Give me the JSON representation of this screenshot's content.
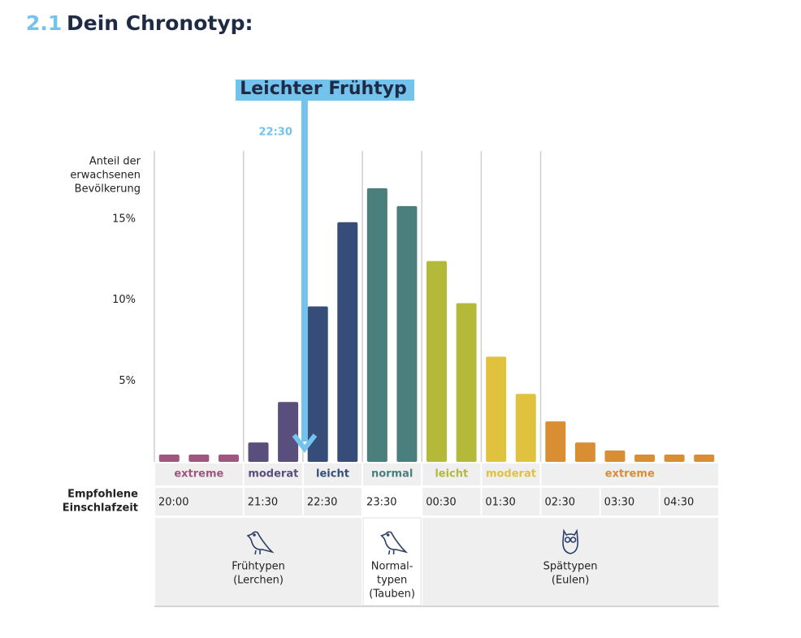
{
  "chart_data": {
    "type": "bar",
    "heading_number": "2.1",
    "title": "Dein Chronotyp:",
    "y_label_lines": [
      "Anteil der",
      "erwachsenen",
      "Bevölkerung"
    ],
    "ylim": [
      0,
      19.2
    ],
    "yticks": [
      {
        "value": 5,
        "label": "5%"
      },
      {
        "value": 10,
        "label": "10%"
      },
      {
        "value": 15,
        "label": "15%"
      }
    ],
    "marker": {
      "label": "Leichter Frühtyp",
      "time": "22:30",
      "color": "#74c3ec"
    },
    "groups": [
      {
        "label": "extreme",
        "color": "#a0577f",
        "values": [
          0.45,
          0.45,
          0.45
        ]
      },
      {
        "label": "moderat",
        "color": "#5a4f7c",
        "values": [
          1.2,
          3.7
        ]
      },
      {
        "label": "leicht",
        "color": "#354d78",
        "values": [
          9.6,
          14.8
        ]
      },
      {
        "label": "normal",
        "color": "#4a7f7d",
        "values": [
          16.9,
          15.8
        ]
      },
      {
        "label": "leicht",
        "color": "#b5b93a",
        "values": [
          12.4,
          9.8
        ]
      },
      {
        "label": "moderat",
        "color": "#e0c23e",
        "values": [
          6.5,
          4.2
        ]
      },
      {
        "label": "extreme",
        "color": "#d98e33",
        "values": [
          2.5,
          1.2,
          0.7,
          0.45,
          0.45,
          0.45
        ]
      }
    ],
    "time_row_label_lines": [
      "Empfohlene",
      "Einschlafzeit"
    ],
    "times": [
      "20:00",
      "21:30",
      "22:30",
      "23:30",
      "00:30",
      "01:30",
      "02:30",
      "03:30",
      "04:30"
    ],
    "chronotypes": [
      {
        "lines": [
          "Frühtypen",
          "(Lerchen)"
        ]
      },
      {
        "lines": [
          "Normal-",
          "typen",
          "(Tauben)"
        ]
      },
      {
        "lines": [
          "Spättypen",
          "(Eulen)"
        ]
      }
    ]
  }
}
